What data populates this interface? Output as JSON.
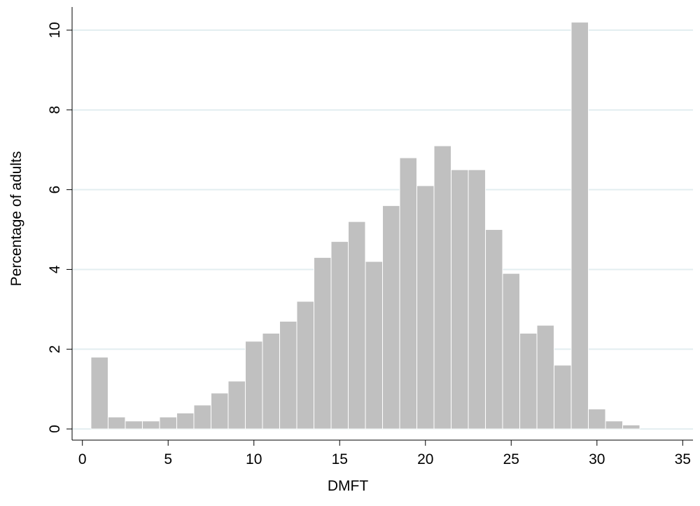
{
  "chart_data": {
    "type": "histogram",
    "x_label": "DMFT",
    "y_label": "Percentage of adults",
    "bins": [
      0.5,
      1.5,
      2.5,
      3.5,
      4.5,
      5.5,
      6.5,
      7.5,
      8.5,
      9.5,
      10.5,
      11.5,
      12.5,
      13.5,
      14.5,
      15.5,
      16.5,
      17.5,
      18.5,
      19.5,
      20.5,
      21.5,
      22.5,
      23.5,
      24.5,
      25.5,
      26.5,
      27.5,
      28.5,
      29.5,
      30.5,
      31.5,
      32.5
    ],
    "values": [
      1.8,
      0.3,
      0.2,
      0.2,
      0.3,
      0.4,
      0.6,
      0.9,
      1.2,
      2.2,
      2.4,
      2.7,
      3.2,
      4.3,
      4.7,
      5.2,
      4.2,
      5.6,
      6.8,
      6.1,
      7.1,
      6.5,
      6.5,
      5.0,
      3.9,
      2.4,
      2.6,
      1.6,
      10.2,
      0.5,
      0.2,
      0.1
    ],
    "color": "#c0c0c0",
    "xlim": [
      -0.6,
      35.6
    ],
    "xticks": [
      0,
      5,
      10,
      15,
      20,
      25,
      30,
      35
    ],
    "ylim": [
      -0.28,
      10.58
    ],
    "yticks": [
      0,
      2,
      4,
      6,
      8,
      10
    ],
    "grid": true
  }
}
